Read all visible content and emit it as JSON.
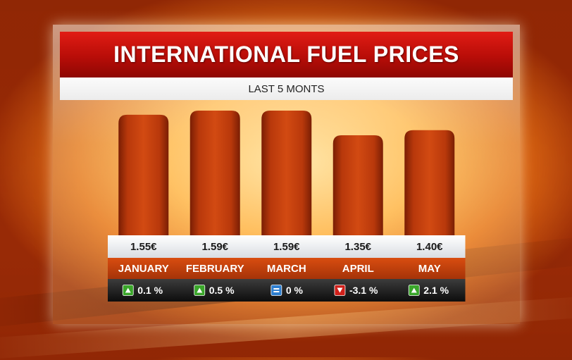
{
  "chart_data": {
    "type": "bar",
    "title": "INTERNATIONAL FUEL PRICES",
    "subtitle": "LAST 5 MONTS",
    "categories": [
      "JANUARY",
      "FEBRUARY",
      "MARCH",
      "APRIL",
      "MAY"
    ],
    "values": [
      1.55,
      1.59,
      1.59,
      1.35,
      1.4
    ],
    "value_labels": [
      "1.55€",
      "1.59€",
      "1.59€",
      "1.35€",
      "1.40€"
    ],
    "changes": [
      {
        "label": "0.1 %",
        "direction": "up"
      },
      {
        "label": "0.5 %",
        "direction": "up"
      },
      {
        "label": "0 %",
        "direction": "flat"
      },
      {
        "label": "-3.1 %",
        "direction": "down"
      },
      {
        "label": "2.1 %",
        "direction": "up"
      }
    ],
    "unit": "€",
    "colors": {
      "bar": "#c8420e",
      "up": "#3aa62a",
      "down": "#d0201a",
      "flat": "#2e7fd0"
    }
  }
}
